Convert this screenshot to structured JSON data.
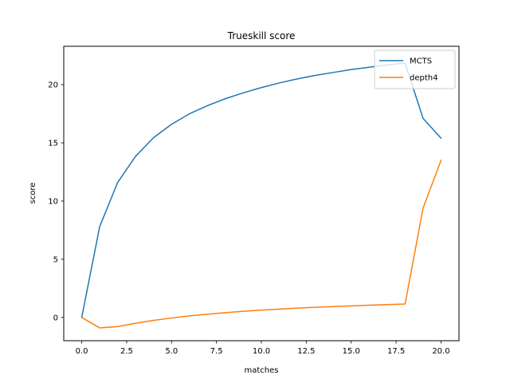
{
  "chart_data": {
    "type": "line",
    "title": "Trueskill score",
    "xlabel": "matches",
    "ylabel": "score",
    "xlim": [
      -1,
      21
    ],
    "ylim": [
      -2,
      23.3
    ],
    "x_ticks": [
      0,
      2.5,
      5,
      7.5,
      10,
      12.5,
      15,
      17.5,
      20
    ],
    "x_tick_labels": [
      "0.0",
      "2.5",
      "5.0",
      "7.5",
      "10.0",
      "12.5",
      "15.0",
      "17.5",
      "20.0"
    ],
    "y_ticks": [
      0,
      5,
      10,
      15,
      20
    ],
    "y_tick_labels": [
      "0",
      "5",
      "10",
      "15",
      "20"
    ],
    "grid": false,
    "legend_position": "top-right",
    "x": [
      0,
      1,
      2,
      3,
      4,
      5,
      6,
      7,
      8,
      9,
      10,
      11,
      12,
      13,
      14,
      15,
      16,
      17,
      18,
      19,
      20
    ],
    "series": [
      {
        "name": "MCTS",
        "color": "#1f77b4",
        "values": [
          0,
          7.8,
          11.6,
          13.85,
          15.45,
          16.6,
          17.5,
          18.2,
          18.8,
          19.3,
          19.75,
          20.15,
          20.5,
          20.8,
          21.05,
          21.3,
          21.5,
          21.7,
          21.85,
          17.1,
          15.4
        ]
      },
      {
        "name": "depth4",
        "color": "#ff7f0e",
        "values": [
          0,
          -0.9,
          -0.78,
          -0.5,
          -0.25,
          -0.05,
          0.13,
          0.28,
          0.41,
          0.53,
          0.63,
          0.72,
          0.8,
          0.87,
          0.93,
          0.99,
          1.05,
          1.1,
          1.15,
          9.4,
          13.5
        ]
      }
    ]
  }
}
